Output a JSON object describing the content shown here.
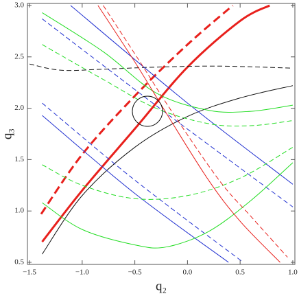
{
  "chart_data": {
    "type": "line",
    "x_label": "q₂",
    "y_label": "q₃",
    "xlim": [
      -1.52,
      1.02
    ],
    "ylim": [
      0.48,
      3.02
    ],
    "xticks": [
      {
        "value": -1.5,
        "label": "−1.5"
      },
      {
        "value": -1.0,
        "label": "−1.0"
      },
      {
        "value": -0.5,
        "label": "−0.5"
      },
      {
        "value": 0,
        "label": "0.0"
      },
      0.5,
      {
        "value": 1.0,
        "label": "1.0"
      }
    ],
    "yticks": [
      0.5,
      {
        "value": 1.0,
        "label": "1.0"
      },
      1.5,
      {
        "value": 2.0,
        "label": "2.0"
      },
      2.5,
      {
        "value": 3.0,
        "label": "3.0"
      }
    ],
    "series": [
      {
        "color": "#e8201c",
        "style": "solid",
        "line_width": 3,
        "x": [
          -1.38,
          -1.0,
          -0.5,
          0.0,
          0.5,
          0.78
        ],
        "values": [
          0.7,
          1.2,
          1.8,
          2.4,
          2.85,
          3.0
        ]
      },
      {
        "color": "#e8201c",
        "style": "dashed",
        "line_width": 3,
        "x": [
          -1.39,
          -1.0,
          -0.5,
          0.0,
          0.43
        ],
        "values": [
          0.97,
          1.55,
          2.12,
          2.62,
          3.0
        ]
      },
      {
        "color": "#111111",
        "style": "solid",
        "line_width": 1,
        "x": [
          -1.38,
          -1.0,
          -0.5,
          0.0,
          0.5,
          1.0
        ],
        "values": [
          0.58,
          1.15,
          1.62,
          1.92,
          2.1,
          2.22
        ]
      },
      {
        "color": "#111111",
        "style": "dashed",
        "line_width": 1,
        "x": [
          -1.5,
          -1.2,
          -0.8,
          -0.3,
          0.3,
          1.0
        ],
        "values": [
          2.43,
          2.37,
          2.38,
          2.4,
          2.41,
          2.39
        ]
      },
      {
        "color": "#2030d0",
        "style": "solid",
        "line_width": 1,
        "x": [
          -1.11,
          0.0,
          1.0
        ],
        "values": [
          3.0,
          2.05,
          1.26
        ]
      },
      {
        "color": "#2030d0",
        "style": "dashed",
        "line_width": 1,
        "x": [
          -1.38,
          -0.2,
          1.0
        ],
        "values": [
          2.87,
          1.95,
          1.04
        ]
      },
      {
        "color": "#2030d0",
        "style": "solid",
        "line_width": 1,
        "x": [
          -1.38,
          -0.5,
          0.39
        ],
        "values": [
          1.93,
          1.17,
          0.5
        ]
      },
      {
        "color": "#2030d0",
        "style": "dashed",
        "line_width": 1,
        "x": [
          -1.38,
          -0.5,
          0.53
        ],
        "values": [
          2.05,
          1.3,
          0.5
        ]
      },
      {
        "color": "#22dd22",
        "style": "solid",
        "line_width": 1,
        "x": [
          -1.38,
          -0.8,
          -0.3,
          0.2,
          0.6,
          1.0
        ],
        "values": [
          2.93,
          2.55,
          2.15,
          1.98,
          1.97,
          2.03
        ]
      },
      {
        "color": "#22dd22",
        "style": "dashed",
        "line_width": 1,
        "x": [
          -1.38,
          -0.8,
          -0.3,
          0.2,
          0.6,
          1.0
        ],
        "values": [
          2.62,
          2.28,
          2.0,
          1.85,
          1.83,
          1.88
        ]
      },
      {
        "color": "#22dd22",
        "style": "dashed",
        "line_width": 1,
        "x": [
          -1.38,
          -1.0,
          -0.5,
          0.0,
          0.5,
          1.0
        ],
        "values": [
          1.45,
          1.25,
          1.12,
          1.15,
          1.32,
          1.62
        ]
      },
      {
        "color": "#22dd22",
        "style": "solid",
        "line_width": 1,
        "x": [
          -1.38,
          -1.0,
          -0.5,
          -0.2,
          0.2,
          0.6,
          1.0
        ],
        "values": [
          1.08,
          0.82,
          0.67,
          0.65,
          0.8,
          1.1,
          1.47
        ]
      },
      {
        "color": "#e8201c",
        "style": "solid",
        "line_width": 1,
        "x": [
          -0.85,
          -0.5,
          -0.2,
          0.2,
          0.5,
          0.88
        ],
        "values": [
          3.0,
          2.45,
          1.95,
          1.3,
          0.9,
          0.5
        ]
      },
      {
        "color": "#e8201c",
        "style": "dashed",
        "line_width": 1,
        "x": [
          -0.8,
          -0.45,
          -0.15,
          0.3,
          0.6,
          0.95
        ],
        "values": [
          3.0,
          2.45,
          1.97,
          1.3,
          0.95,
          0.55
        ]
      }
    ]
  }
}
